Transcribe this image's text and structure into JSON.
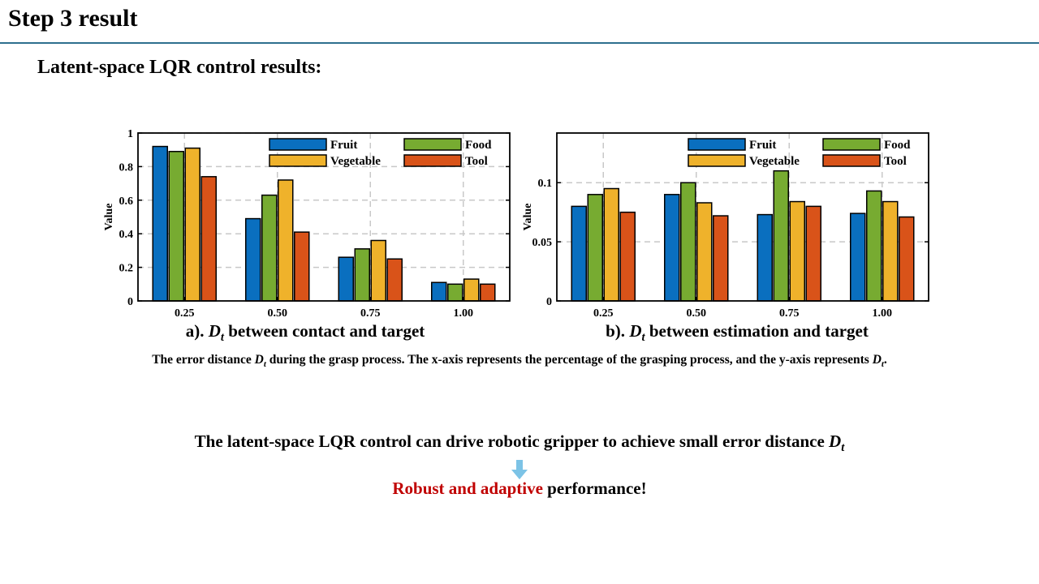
{
  "slide": {
    "title": "Step 3 result",
    "subtitle": "Latent-space LQR control results:"
  },
  "colors": {
    "rule": "#2e6f8e",
    "Fruit": "#0a6fbf",
    "Food": "#77ab31",
    "Vegetable": "#efb22b",
    "Tool": "#d95319",
    "highlight": "#c00000",
    "arrow": "#7cc3e6"
  },
  "caption": {
    "prefix": "The error distance ",
    "symbol": "D",
    "symbol_sub": "t",
    "middle": " during the grasp process. The x-axis represents the percentage of the grasping process, and the y-axis represents ",
    "suffix": "."
  },
  "subcaptions": {
    "a_prefix": "a). ",
    "a_suffix": " between contact and target",
    "b_prefix": "b). ",
    "b_suffix": " between estimation and target",
    "symbol": "D",
    "symbol_sub": "t"
  },
  "conclusion": {
    "text": "The latent-space LQR control can drive robotic gripper to achieve small error distance ",
    "symbol": "D",
    "symbol_sub": "t",
    "final_highlight": "Robust and adaptive",
    "final_rest": " performance!"
  },
  "chart_data": [
    {
      "type": "bar",
      "categories": [
        "0.25",
        "0.50",
        "0.75",
        "1.00"
      ],
      "series": [
        {
          "name": "Fruit",
          "values": [
            0.92,
            0.49,
            0.26,
            0.11
          ]
        },
        {
          "name": "Food",
          "values": [
            0.89,
            0.63,
            0.31,
            0.1
          ]
        },
        {
          "name": "Vegetable",
          "values": [
            0.91,
            0.72,
            0.36,
            0.13
          ]
        },
        {
          "name": "Tool",
          "values": [
            0.74,
            0.41,
            0.25,
            0.1
          ]
        }
      ],
      "ylabel": "Value",
      "ylim": [
        0,
        1
      ],
      "yticks": [
        0,
        0.2,
        0.4,
        0.6,
        0.8,
        1
      ],
      "ytick_labels": [
        "0",
        "0.2",
        "0.4",
        "0.6",
        "0.8",
        "1"
      ],
      "grid": true,
      "legend": "top-right"
    },
    {
      "type": "bar",
      "categories": [
        "0.25",
        "0.50",
        "0.75",
        "1.00"
      ],
      "series": [
        {
          "name": "Fruit",
          "values": [
            0.08,
            0.09,
            0.073,
            0.074
          ]
        },
        {
          "name": "Food",
          "values": [
            0.09,
            0.1,
            0.11,
            0.093
          ]
        },
        {
          "name": "Vegetable",
          "values": [
            0.095,
            0.083,
            0.084,
            0.084
          ]
        },
        {
          "name": "Tool",
          "values": [
            0.075,
            0.072,
            0.08,
            0.071
          ]
        }
      ],
      "ylabel": "Value",
      "ylim": [
        0,
        0.142
      ],
      "yticks": [
        0,
        0.05,
        0.1
      ],
      "ytick_labels": [
        "0",
        "0.05",
        "0.1"
      ],
      "grid": true,
      "legend": "top-right"
    }
  ]
}
